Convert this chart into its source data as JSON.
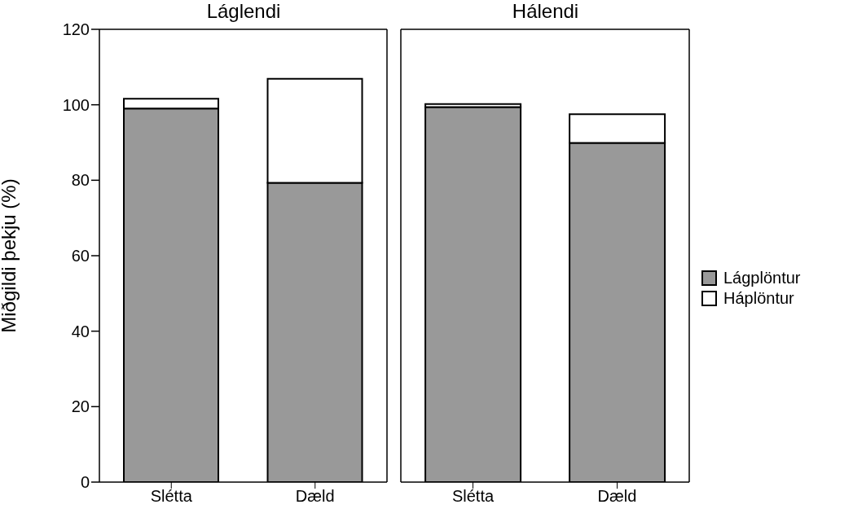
{
  "chart_data": [
    {
      "type": "bar",
      "title": "Láglendi",
      "ylabel": "Miðgildi þekju (%)",
      "categories": [
        "Slétta",
        "Dæld"
      ],
      "stacked": true,
      "ylim": [
        0,
        120
      ],
      "yticks": [
        0,
        20,
        40,
        60,
        80,
        100,
        120
      ],
      "grid": false,
      "legend": false,
      "series": [
        {
          "color": "#999999",
          "values": [
            99,
            79.3
          ]
        },
        {
          "color": "#ffffff",
          "values": [
            2.6,
            27.6
          ]
        }
      ]
    },
    {
      "type": "bar",
      "title": "Hálendi",
      "categories": [
        "Slétta",
        "Dæld"
      ],
      "stacked": true,
      "ylim": [
        0,
        120
      ],
      "yticks": [
        0,
        20,
        40,
        60,
        80,
        100,
        120
      ],
      "tick_labels": "x",
      "grid": false,
      "legend": "right",
      "series": [
        {
          "name": "Lágplöntur",
          "color": "#999999",
          "values": [
            99.4,
            89.9
          ]
        },
        {
          "name": "Háplöntur",
          "color": "#ffffff",
          "values": [
            0.8,
            7.6
          ]
        }
      ]
    }
  ]
}
